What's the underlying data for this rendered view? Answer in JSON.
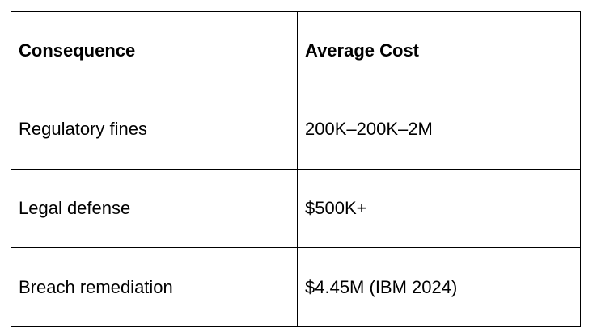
{
  "table": {
    "header": [
      "Consequence",
      "Average Cost"
    ],
    "rows": [
      [
        "Regulatory fines",
        "200K–200K–2M"
      ],
      [
        "Legal defense",
        "$500K+"
      ],
      [
        "Breach remediation",
        "$4.45M (IBM 2024)"
      ]
    ]
  }
}
